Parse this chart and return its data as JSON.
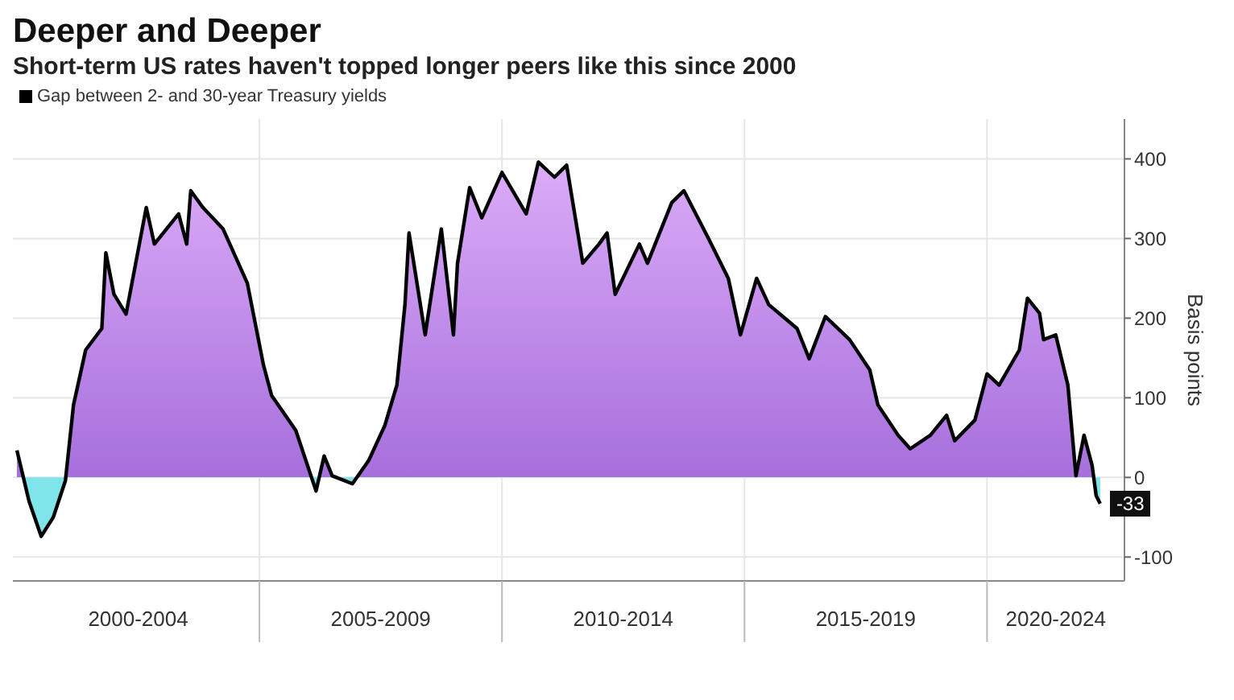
{
  "chart_data": {
    "type": "area",
    "title": "Deeper and Deeper",
    "subtitle": "Short-term US rates haven't topped longer peers like this since 2000",
    "ylabel": "Basis points",
    "x": [
      "2000-01",
      "2000-04",
      "2000-07",
      "2000-10",
      "2001-01",
      "2001-03",
      "2001-06",
      "2001-10",
      "2001-11",
      "2002-01",
      "2002-04",
      "2002-09",
      "2002-11",
      "2003-05",
      "2003-07",
      "2003-08",
      "2003-11",
      "2004-04",
      "2004-10",
      "2005-02",
      "2005-04",
      "2005-10",
      "2006-03",
      "2006-05",
      "2006-07",
      "2006-12",
      "2007-04",
      "2007-08",
      "2007-11",
      "2008-01",
      "2008-02",
      "2008-06",
      "2008-10",
      "2009-01",
      "2009-02",
      "2009-05",
      "2009-08",
      "2010-01",
      "2010-07",
      "2010-10",
      "2011-02",
      "2011-05",
      "2011-09",
      "2012-01",
      "2012-03",
      "2012-05",
      "2012-11",
      "2013-01",
      "2013-07",
      "2013-10",
      "2014-04",
      "2014-09",
      "2014-12",
      "2015-04",
      "2015-07",
      "2016-02",
      "2016-05",
      "2016-09",
      "2017-03",
      "2017-08",
      "2017-10",
      "2018-03",
      "2018-06",
      "2018-11",
      "2019-03",
      "2019-05",
      "2019-10",
      "2020-01",
      "2020-04",
      "2020-09",
      "2020-11",
      "2021-02",
      "2021-03",
      "2021-06",
      "2021-09",
      "2021-11",
      "2022-01",
      "2022-03",
      "2022-04",
      "2022-05"
    ],
    "series": [
      {
        "name": "Gap between 2- and 30-year Treasury yields",
        "color": "#000000",
        "values": [
          34,
          -30,
          -74,
          -50,
          -4,
          91,
          160,
          187,
          282,
          230,
          205,
          339,
          293,
          331,
          293,
          360,
          339,
          312,
          244,
          141,
          103,
          59,
          -17,
          27,
          2,
          -8,
          21,
          65,
          116,
          217,
          307,
          179,
          312,
          179,
          269,
          364,
          326,
          383,
          331,
          396,
          377,
          392,
          269,
          293,
          307,
          230,
          293,
          269,
          345,
          360,
          301,
          250,
          179,
          250,
          217,
          187,
          149,
          202,
          173,
          135,
          91,
          53,
          36,
          53,
          78,
          46,
          72,
          130,
          116,
          160,
          225,
          206,
          173,
          179,
          116,
          2,
          53,
          15,
          -23,
          -33
        ]
      }
    ],
    "xlim": [
      "1999-12",
      "2022-11"
    ],
    "xticks": [
      {
        "value": "2002-07",
        "label": "2000-2004"
      },
      {
        "value": "2005-01",
        "label": null
      },
      {
        "value": "2007-07",
        "label": "2005-2009"
      },
      {
        "value": "2010-01",
        "label": null
      },
      {
        "value": "2012-07",
        "label": "2010-2014"
      },
      {
        "value": "2015-01",
        "label": null
      },
      {
        "value": "2017-07",
        "label": "2015-2019"
      },
      {
        "value": "2020-01",
        "label": null
      },
      {
        "value": "2021-06",
        "label": "2020-2024"
      }
    ],
    "ylim": [
      -130,
      450
    ],
    "yticks": [
      -100,
      0,
      100,
      200,
      300,
      400
    ],
    "annotations": [
      {
        "text": "-33",
        "x": "2022-05",
        "y": -33
      }
    ],
    "grid": true,
    "legend": "top left",
    "marker": "none",
    "line_style": "solid"
  }
}
